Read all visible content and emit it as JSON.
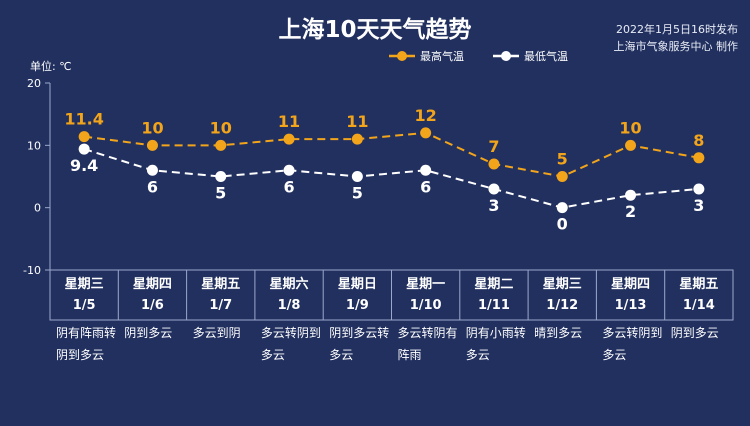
{
  "header": {
    "title": "上海10天天气趋势",
    "issued": "2022年1月5日16时发布",
    "producer": "上海市气象服务中心 制作",
    "unit": "单位: ℃"
  },
  "legend": {
    "high": "最高气温",
    "low": "最低气温"
  },
  "colors": {
    "background": "#22305f",
    "high": "#f2a51a",
    "low": "#ffffff",
    "axis": "#9aa8cc"
  },
  "days": [
    {
      "weekday": "星期三",
      "date": "1/5",
      "cond1": "阴有阵雨转",
      "cond2": "阴到多云"
    },
    {
      "weekday": "星期四",
      "date": "1/6",
      "cond1": "阴到多云",
      "cond2": ""
    },
    {
      "weekday": "星期五",
      "date": "1/7",
      "cond1": "多云到阴",
      "cond2": ""
    },
    {
      "weekday": "星期六",
      "date": "1/8",
      "cond1": "多云转阴到",
      "cond2": "多云"
    },
    {
      "weekday": "星期日",
      "date": "1/9",
      "cond1": "阴到多云转",
      "cond2": "多云"
    },
    {
      "weekday": "星期一",
      "date": "1/10",
      "cond1": "多云转阴有",
      "cond2": "阵雨"
    },
    {
      "weekday": "星期二",
      "date": "1/11",
      "cond1": "阴有小雨转",
      "cond2": "多云"
    },
    {
      "weekday": "星期三",
      "date": "1/12",
      "cond1": "晴到多云",
      "cond2": ""
    },
    {
      "weekday": "星期四",
      "date": "1/13",
      "cond1": "多云转阴到",
      "cond2": "多云"
    },
    {
      "weekday": "星期五",
      "date": "1/14",
      "cond1": "阴到多云",
      "cond2": ""
    }
  ],
  "chart_data": {
    "type": "line",
    "title": "上海10天天气趋势",
    "ylabel": "单位: ℃",
    "ylim": [
      -10,
      20
    ],
    "yticks": [
      "20",
      "10",
      "0",
      "-10"
    ],
    "categories": [
      "1/5",
      "1/6",
      "1/7",
      "1/8",
      "1/9",
      "1/10",
      "1/11",
      "1/12",
      "1/13",
      "1/14"
    ],
    "grid": false,
    "legend_position": "top-right",
    "series": [
      {
        "name": "最高气温",
        "values": [
          11.4,
          10,
          10,
          11,
          11,
          12,
          7,
          5,
          10,
          8
        ],
        "labels": [
          "11.4",
          "10",
          "10",
          "11",
          "11",
          "12",
          "7",
          "5",
          "10",
          "8"
        ]
      },
      {
        "name": "最低气温",
        "values": [
          9.4,
          6,
          5,
          6,
          5,
          6,
          3,
          0,
          2,
          3
        ],
        "labels": [
          "9.4",
          "6",
          "5",
          "6",
          "5",
          "6",
          "3",
          "0",
          "2",
          "3"
        ]
      }
    ]
  }
}
